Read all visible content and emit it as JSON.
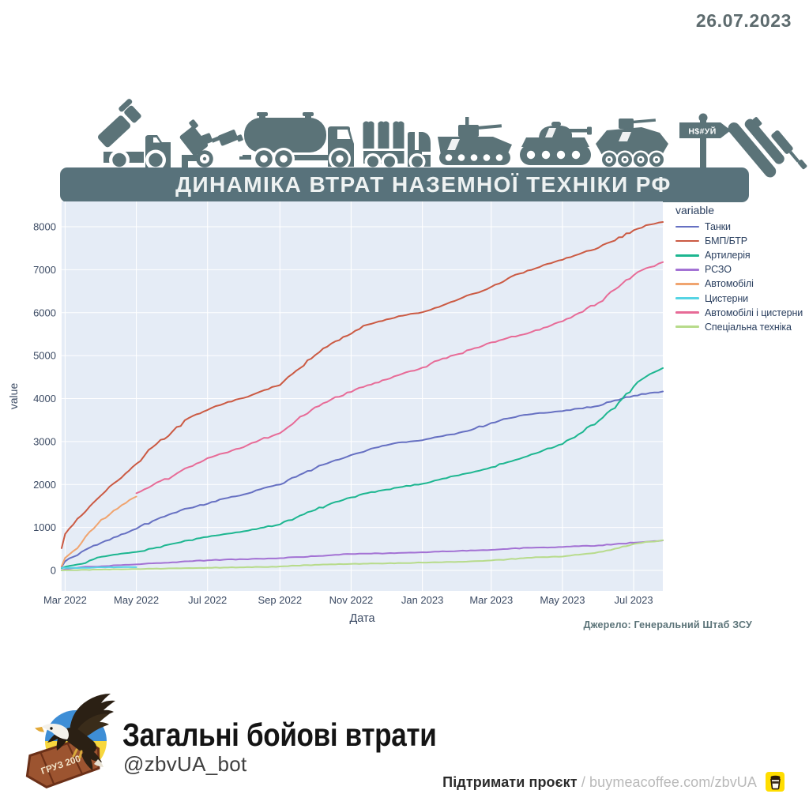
{
  "date_label": "26.07.2023",
  "banner": {
    "title": "ДИНАМІКА ВТРАТ НАЗЕМНОЇ ТЕХНІКИ РФ"
  },
  "icon_row": [
    "mlrs-truck",
    "towed-howitzer",
    "fuel-tanker-truck",
    "cargo-truck",
    "tracked-ifv",
    "tank",
    "wheeled-apc",
    "signpost-nsuy",
    "sinking-warship"
  ],
  "signpost_text": "Н$#УЙ",
  "chart_data": {
    "type": "line",
    "title": "",
    "xlabel": "Дата",
    "ylabel": "value",
    "legend_title": "variable",
    "legend_position": "right-top-outside",
    "grid": true,
    "plot_bg": "#e5ecf6",
    "grid_color": "#ffffff",
    "x_range": [
      "2022-02-26",
      "2023-07-26"
    ],
    "ylim": [
      0,
      8109
    ],
    "y_ticks": [
      0,
      1000,
      2000,
      3000,
      4000,
      5000,
      6000,
      7000,
      8000
    ],
    "x_ticks": [
      {
        "date": "2022-03-01",
        "label": "Mar 2022"
      },
      {
        "date": "2022-05-01",
        "label": "May 2022"
      },
      {
        "date": "2022-07-01",
        "label": "Jul 2022"
      },
      {
        "date": "2022-09-01",
        "label": "Sep 2022"
      },
      {
        "date": "2022-11-01",
        "label": "Nov 2022"
      },
      {
        "date": "2023-01-01",
        "label": "Jan 2023"
      },
      {
        "date": "2023-03-01",
        "label": "Mar 2023"
      },
      {
        "date": "2023-05-01",
        "label": "May 2023"
      },
      {
        "date": "2023-07-01",
        "label": "Jul 2023"
      }
    ],
    "series": [
      {
        "name": "Танки",
        "color": "#6670c2",
        "dates": [
          "2022-02-26",
          "2022-03-01",
          "2022-03-08",
          "2022-03-15",
          "2022-03-22",
          "2022-04-01",
          "2022-04-15",
          "2022-05-01",
          "2022-05-15",
          "2022-06-01",
          "2022-06-15",
          "2022-07-01",
          "2022-07-15",
          "2022-08-01",
          "2022-08-15",
          "2022-09-01",
          "2022-09-15",
          "2022-10-01",
          "2022-10-15",
          "2022-11-01",
          "2022-11-15",
          "2022-12-01",
          "2022-12-15",
          "2023-01-01",
          "2023-01-15",
          "2023-02-01",
          "2023-02-15",
          "2023-03-01",
          "2023-03-15",
          "2023-04-01",
          "2023-04-15",
          "2023-05-01",
          "2023-05-15",
          "2023-06-01",
          "2023-06-15",
          "2023-07-01",
          "2023-07-15",
          "2023-07-26"
        ],
        "values": [
          80,
          211,
          317,
          430,
          530,
          644,
          790,
          970,
          1150,
          1330,
          1450,
          1550,
          1672,
          1768,
          1886,
          1997,
          2180,
          2377,
          2530,
          2686,
          2800,
          2914,
          2985,
          3031,
          3112,
          3201,
          3303,
          3432,
          3537,
          3625,
          3665,
          3707,
          3768,
          3829,
          3960,
          4067,
          4131,
          4166
        ]
      },
      {
        "name": "БМП/БТР",
        "color": "#cb5a43",
        "dates": [
          "2022-02-26",
          "2022-03-01",
          "2022-03-08",
          "2022-03-15",
          "2022-03-22",
          "2022-04-01",
          "2022-04-15",
          "2022-05-01",
          "2022-05-15",
          "2022-06-01",
          "2022-06-15",
          "2022-07-01",
          "2022-07-15",
          "2022-08-01",
          "2022-08-15",
          "2022-09-01",
          "2022-09-15",
          "2022-10-01",
          "2022-10-15",
          "2022-11-01",
          "2022-11-15",
          "2022-12-01",
          "2022-12-15",
          "2023-01-01",
          "2023-01-15",
          "2023-02-01",
          "2023-02-15",
          "2023-03-01",
          "2023-03-15",
          "2023-04-01",
          "2023-04-15",
          "2023-05-01",
          "2023-05-15",
          "2023-06-01",
          "2023-06-15",
          "2023-07-01",
          "2023-07-15",
          "2023-07-26"
        ],
        "values": [
          516,
          846,
          1070,
          1279,
          1487,
          1751,
          2090,
          2480,
          2870,
          3235,
          3550,
          3736,
          3880,
          4014,
          4160,
          4312,
          4650,
          5008,
          5280,
          5510,
          5720,
          5840,
          5930,
          6010,
          6130,
          6310,
          6450,
          6600,
          6790,
          6980,
          7110,
          7230,
          7360,
          7510,
          7680,
          7920,
          8050,
          8110
        ]
      },
      {
        "name": "Артилерія",
        "color": "#1db690",
        "dates": [
          "2022-02-26",
          "2022-03-01",
          "2022-03-08",
          "2022-03-15",
          "2022-03-22",
          "2022-04-01",
          "2022-04-15",
          "2022-05-01",
          "2022-05-15",
          "2022-06-01",
          "2022-06-15",
          "2022-07-01",
          "2022-07-15",
          "2022-08-01",
          "2022-08-15",
          "2022-09-01",
          "2022-09-15",
          "2022-10-01",
          "2022-10-15",
          "2022-11-01",
          "2022-11-15",
          "2022-12-01",
          "2022-12-15",
          "2023-01-01",
          "2023-01-15",
          "2023-02-01",
          "2023-02-15",
          "2023-03-01",
          "2023-03-15",
          "2023-04-01",
          "2023-04-15",
          "2023-05-01",
          "2023-05-15",
          "2023-06-01",
          "2023-06-15",
          "2023-07-01",
          "2023-07-15",
          "2023-07-26"
        ],
        "values": [
          49,
          85,
          120,
          150,
          230,
          317,
          375,
          430,
          510,
          620,
          700,
          780,
          845,
          910,
          985,
          1070,
          1230,
          1405,
          1560,
          1700,
          1800,
          1880,
          1945,
          2015,
          2110,
          2210,
          2300,
          2400,
          2520,
          2660,
          2800,
          2940,
          3170,
          3480,
          3780,
          4280,
          4570,
          4710
        ]
      },
      {
        "name": "РСЗО",
        "color": "#a372d4",
        "dates": [
          "2022-02-26",
          "2022-03-01",
          "2022-03-08",
          "2022-03-15",
          "2022-03-22",
          "2022-04-01",
          "2022-04-15",
          "2022-05-01",
          "2022-05-15",
          "2022-06-01",
          "2022-06-15",
          "2022-07-01",
          "2022-07-15",
          "2022-08-01",
          "2022-08-15",
          "2022-09-01",
          "2022-09-15",
          "2022-10-01",
          "2022-10-15",
          "2022-11-01",
          "2022-11-15",
          "2022-12-01",
          "2022-12-15",
          "2023-01-01",
          "2023-01-15",
          "2023-02-01",
          "2023-02-15",
          "2023-03-01",
          "2023-03-15",
          "2023-04-01",
          "2023-04-15",
          "2023-05-01",
          "2023-05-15",
          "2023-06-01",
          "2023-06-15",
          "2023-07-01",
          "2023-07-15",
          "2023-07-26"
        ],
        "values": [
          4,
          24,
          56,
          76,
          88,
          96,
          122,
          140,
          165,
          190,
          213,
          233,
          250,
          259,
          270,
          285,
          310,
          331,
          355,
          383,
          392,
          398,
          410,
          423,
          438,
          452,
          465,
          478,
          498,
          527,
          536,
          544,
          562,
          581,
          610,
          646,
          674,
          699
        ]
      },
      {
        "name": "Автомобілі",
        "color": "#f0a46f",
        "dates": [
          "2022-02-26",
          "2022-03-01",
          "2022-03-08",
          "2022-03-15",
          "2022-03-22",
          "2022-04-01",
          "2022-04-08",
          "2022-04-15",
          "2022-04-22",
          "2022-05-01"
        ],
        "values": [
          100,
          291,
          450,
          640,
          900,
          1180,
          1300,
          1440,
          1570,
          1720
        ]
      },
      {
        "name": "Цистерни",
        "color": "#56d4e4",
        "dates": [
          "2022-02-26",
          "2022-03-15",
          "2022-04-01",
          "2022-04-15",
          "2022-05-01"
        ],
        "values": [
          60,
          60,
          73,
          76,
          76
        ]
      },
      {
        "name": "Автомобілі і цистерни",
        "color": "#e76b97",
        "dates": [
          "2022-05-01",
          "2022-05-15",
          "2022-06-01",
          "2022-06-15",
          "2022-07-01",
          "2022-07-15",
          "2022-08-01",
          "2022-08-15",
          "2022-09-01",
          "2022-09-15",
          "2022-10-01",
          "2022-10-15",
          "2022-11-01",
          "2022-11-15",
          "2022-12-01",
          "2022-12-15",
          "2023-01-01",
          "2023-01-15",
          "2023-02-01",
          "2023-02-15",
          "2023-03-01",
          "2023-03-15",
          "2023-04-01",
          "2023-04-15",
          "2023-05-01",
          "2023-05-15",
          "2023-06-01",
          "2023-06-15",
          "2023-07-01",
          "2023-07-15",
          "2023-07-26"
        ],
        "values": [
          1796,
          1985,
          2190,
          2405,
          2614,
          2730,
          2871,
          3040,
          3194,
          3490,
          3796,
          3980,
          4155,
          4310,
          4443,
          4580,
          4721,
          4890,
          5038,
          5175,
          5307,
          5410,
          5516,
          5650,
          5798,
          5990,
          6230,
          6540,
          6870,
          7060,
          7177
        ]
      },
      {
        "name": "Спеціальна техніка",
        "color": "#b7db8b",
        "dates": [
          "2022-02-26",
          "2022-03-01",
          "2022-03-15",
          "2022-04-01",
          "2022-04-15",
          "2022-05-01",
          "2022-05-15",
          "2022-06-01",
          "2022-06-15",
          "2022-07-01",
          "2022-07-15",
          "2022-08-01",
          "2022-08-15",
          "2022-09-01",
          "2022-09-15",
          "2022-10-01",
          "2022-10-15",
          "2022-11-01",
          "2022-11-15",
          "2022-12-01",
          "2022-12-15",
          "2023-01-01",
          "2023-01-15",
          "2023-02-01",
          "2023-02-15",
          "2023-03-01",
          "2023-03-15",
          "2023-04-01",
          "2023-04-15",
          "2023-05-01",
          "2023-05-15",
          "2023-06-01",
          "2023-06-15",
          "2023-07-01",
          "2023-07-15",
          "2023-07-26"
        ],
        "values": [
          0,
          5,
          12,
          18,
          25,
          31,
          38,
          48,
          55,
          62,
          66,
          72,
          80,
          92,
          110,
          130,
          141,
          151,
          157,
          163,
          170,
          182,
          190,
          200,
          216,
          232,
          257,
          294,
          310,
          322,
          366,
          427,
          505,
          617,
          668,
          702
        ]
      }
    ]
  },
  "source_note": "Джерело: Генеральний Штаб ЗСУ",
  "footer": {
    "title": "Загальні бойові втрати",
    "handle": "@zbvUA_bot",
    "support_label": "Підтримати проєкт",
    "support_separator": " / ",
    "support_link_text": "buymeacoffee.com/zbvUA",
    "logo_coffin_text": "ГРУЗ 200"
  }
}
